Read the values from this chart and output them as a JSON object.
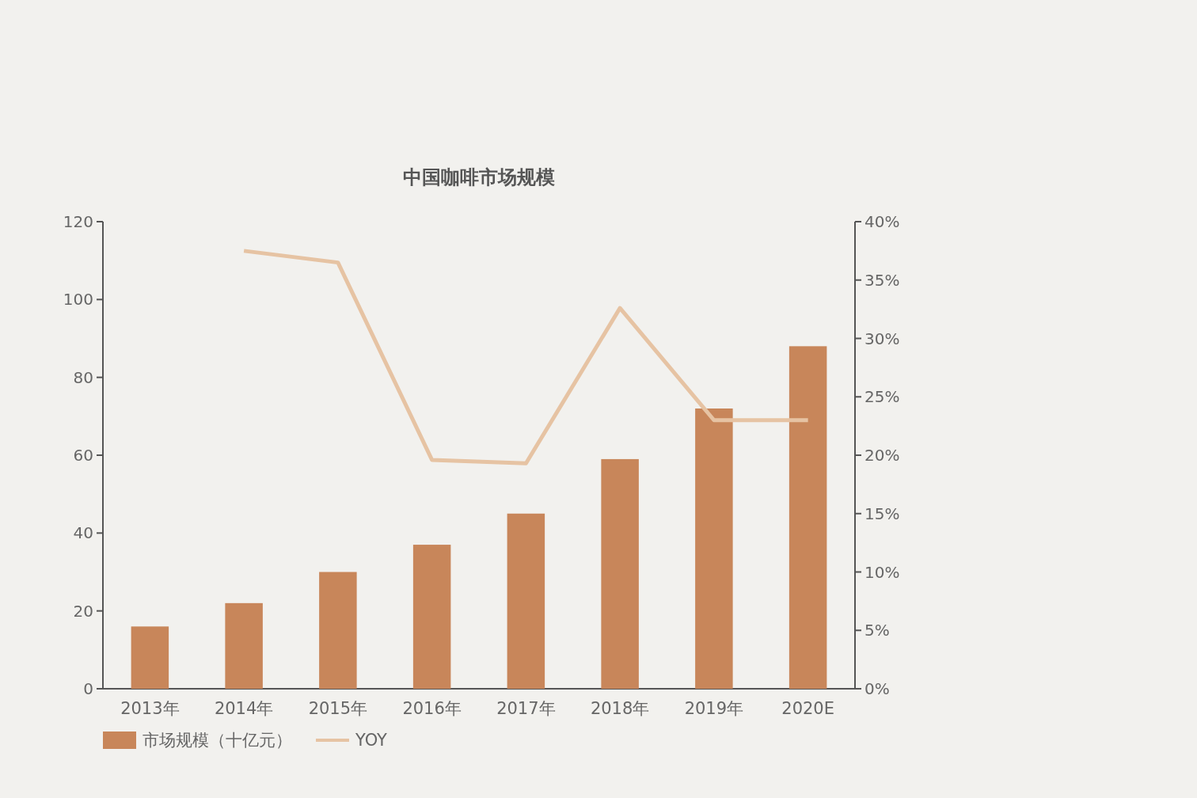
{
  "chart_data": {
    "type": "bar",
    "title": "中国咖啡市场规模",
    "categories": [
      "2013年",
      "2014年",
      "2015年",
      "2016年",
      "2017年",
      "2018年",
      "2019年",
      "2020E"
    ],
    "series": [
      {
        "name": "市场规模（十亿元）",
        "color": "#c8865a",
        "values": [
          16,
          22,
          30,
          37,
          45,
          59,
          72,
          88
        ]
      },
      {
        "name": "YOY",
        "type": "line",
        "axis": "y2",
        "color": "#e6c3a3",
        "values": [
          null,
          37.5,
          36.5,
          19.6,
          19.3,
          32.6,
          23,
          23
        ]
      }
    ],
    "ylim": [
      0,
      120
    ],
    "yticks": [
      0,
      20,
      40,
      60,
      80,
      100,
      120
    ],
    "y2lim": [
      0,
      40
    ],
    "y2ticks": [
      {
        "value": 0,
        "label": "0%"
      },
      {
        "value": 5,
        "label": "5%"
      },
      {
        "value": 10,
        "label": "10%"
      },
      {
        "value": 15,
        "label": "15%"
      },
      {
        "value": 20,
        "label": "20%"
      },
      {
        "value": 25,
        "label": "25%"
      },
      {
        "value": 30,
        "label": "30%"
      },
      {
        "value": 35,
        "label": "35%"
      },
      {
        "value": 40,
        "label": "40%"
      }
    ],
    "legend": "bottom",
    "grid": false
  }
}
